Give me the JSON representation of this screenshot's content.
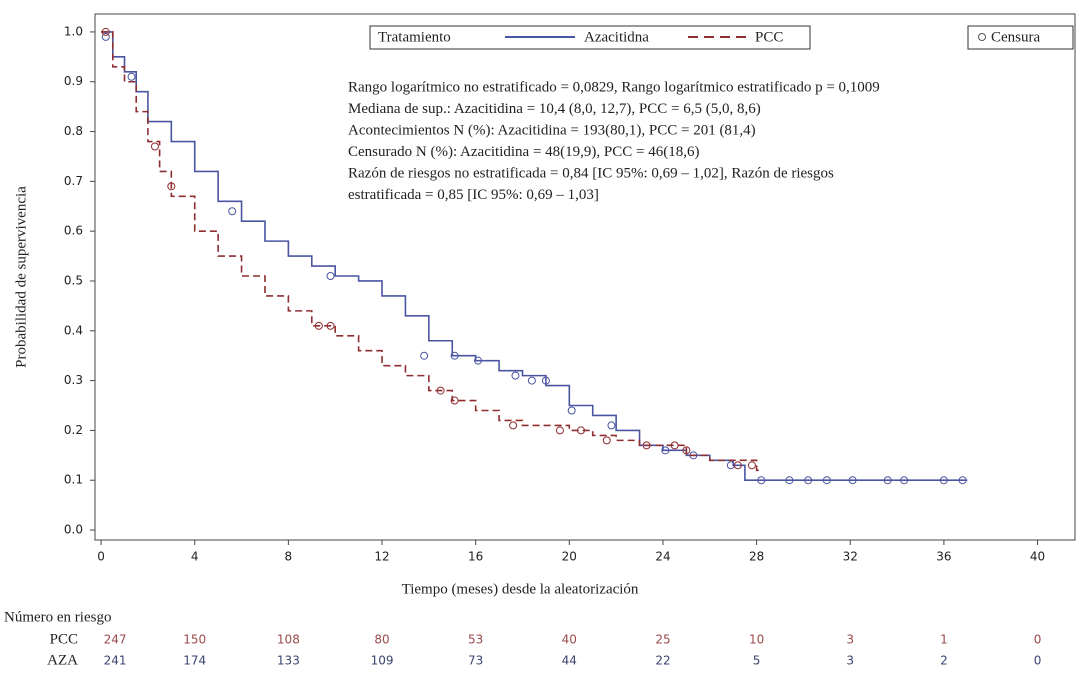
{
  "chart_data": {
    "type": "step",
    "x_label": "Tiempo (meses) desde la aleatorización",
    "y_label": "Probabilidad de supervivencia",
    "xlim": [
      -0.26,
      41.6
    ],
    "ylim": [
      -0.02,
      1.036
    ],
    "xticks": [
      0,
      4,
      8,
      12,
      16,
      20,
      24,
      28,
      32,
      36,
      40
    ],
    "yticks": [
      {
        "value": 0,
        "label": "0.0"
      },
      0.1,
      0.2,
      0.3,
      0.4,
      0.5,
      0.6,
      0.7,
      0.8,
      0.9,
      {
        "value": 1,
        "label": "1.0"
      }
    ],
    "legend_title": "Tratamiento",
    "censor_legend": "Censura",
    "annotations": [
      "Rango logarítmico no estratificado = 0,0829, Rango logarítmico estratificado p = 0,1009",
      "Mediana de sup.: Azacitidina = 10,4 (8,0, 12,7), PCC = 6,5 (5,0, 8,6)",
      "Acontecimientos N (%): Azacitidina = 193(80,1), PCC = 201 (81,4)",
      "Censurado N (%): Azacitidina = 48(19,9), PCC = 46(18,6)",
      "Razón de riesgos no estratificada = 0,84 [IC 95%: 0,69 – 1,02], Razón de riesgos",
      "estratificada = 0,85 [IC 95%: 0,69 – 1,03]"
    ],
    "series": [
      {
        "name": "Azacitidna",
        "color": "#4a55a2",
        "dash": false,
        "x": [
          0,
          0.5,
          1,
          1.5,
          2,
          3,
          4,
          5,
          6,
          7,
          8,
          9,
          10,
          11,
          12,
          13,
          14,
          15,
          16,
          17,
          18,
          19,
          20,
          21,
          22,
          23,
          24,
          25,
          26,
          27,
          27.5,
          37
        ],
        "values": [
          1.0,
          0.95,
          0.92,
          0.88,
          0.82,
          0.78,
          0.72,
          0.66,
          0.62,
          0.58,
          0.55,
          0.53,
          0.51,
          0.5,
          0.47,
          0.43,
          0.38,
          0.35,
          0.34,
          0.32,
          0.31,
          0.29,
          0.25,
          0.23,
          0.2,
          0.17,
          0.16,
          0.15,
          0.14,
          0.13,
          0.1,
          0.1
        ],
        "censored_x": [
          0.2,
          1.3,
          5.6,
          9.8,
          13.8,
          15.1,
          16.1,
          17.7,
          18.4,
          19.0,
          20.1,
          21.8,
          24.1,
          25.3,
          26.9,
          28.2,
          29.4,
          30.2,
          31.0,
          32.1,
          33.6,
          34.3,
          36.0,
          36.8
        ],
        "censored_values": [
          0.99,
          0.91,
          0.64,
          0.51,
          0.35,
          0.35,
          0.34,
          0.31,
          0.3,
          0.3,
          0.24,
          0.21,
          0.16,
          0.15,
          0.13,
          0.1,
          0.1,
          0.1,
          0.1,
          0.1,
          0.1,
          0.1,
          0.1,
          0.1
        ]
      },
      {
        "name": "PCC",
        "color": "#8e2e30",
        "dash": true,
        "x": [
          0,
          0.5,
          1,
          1.5,
          2,
          2.5,
          3,
          4,
          5,
          6,
          7,
          8,
          9,
          10,
          11,
          12,
          13,
          14,
          15,
          16,
          17,
          18,
          20,
          21,
          22,
          23,
          25,
          26,
          28,
          28.2
        ],
        "values": [
          1.0,
          0.93,
          0.9,
          0.84,
          0.78,
          0.72,
          0.67,
          0.6,
          0.55,
          0.51,
          0.47,
          0.44,
          0.41,
          0.39,
          0.36,
          0.33,
          0.31,
          0.28,
          0.26,
          0.24,
          0.22,
          0.21,
          0.2,
          0.19,
          0.18,
          0.17,
          0.15,
          0.14,
          0.12,
          0.12
        ],
        "censored_x": [
          0.2,
          2.3,
          3.0,
          9.3,
          9.8,
          14.5,
          15.1,
          17.6,
          19.6,
          20.5,
          21.6,
          23.3,
          24.5,
          25.0,
          27.2,
          27.8
        ],
        "censored_values": [
          1.0,
          0.77,
          0.69,
          0.41,
          0.41,
          0.28,
          0.26,
          0.21,
          0.2,
          0.2,
          0.18,
          0.17,
          0.17,
          0.16,
          0.13,
          0.13
        ]
      }
    ],
    "risk_table": {
      "title": "Número en riesgo",
      "rows": [
        {
          "name": "PCC",
          "color": "#9a4a4a",
          "values": [
            247,
            150,
            108,
            80,
            53,
            40,
            25,
            10,
            3,
            1,
            0
          ]
        },
        {
          "name": "AZA",
          "color": "#3a4470",
          "values": [
            241,
            174,
            133,
            109,
            73,
            44,
            22,
            5,
            3,
            2,
            0
          ]
        }
      ]
    }
  }
}
